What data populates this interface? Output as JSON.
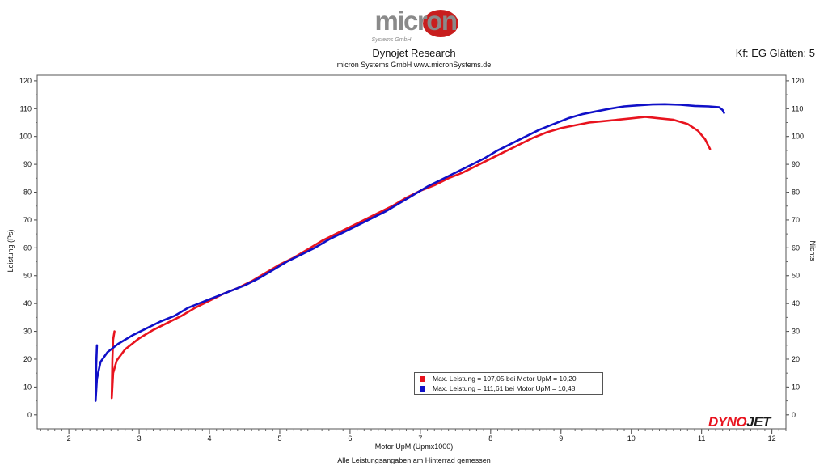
{
  "header": {
    "logo_text": "micron",
    "logo_subtext": "Systems GmbH",
    "title": "Dynojet Research",
    "subtitle": "micron Systems GmbH  www.micronSystems.de",
    "filter_label": "Kf: EG Glätten: 5"
  },
  "footer": {
    "note": "Alle Leistungsangaben am Hinterrad gemessen",
    "brand_logo": "DYNOJET"
  },
  "colors": {
    "run1": "#e8131e",
    "run2": "#1010c8",
    "logo_red": "#c81e1e",
    "logo_gray": "#8a8a8a"
  },
  "chart_data": {
    "type": "line",
    "xlabel": "Motor UpM (Upmx1000)",
    "ylabel": "Leistung (Ps)",
    "ylabel_right": "Nichts",
    "xlim": [
      1.55,
      12.2
    ],
    "ylim": [
      -5,
      122
    ],
    "xticks": [
      "2",
      "3",
      "4",
      "5",
      "6",
      "7",
      "8",
      "9",
      "10",
      "11",
      "12"
    ],
    "yticks": [
      "0",
      "10",
      "20",
      "30",
      "40",
      "50",
      "60",
      "70",
      "80",
      "90",
      "100",
      "110",
      "120"
    ],
    "grid": true,
    "legend_position": "bottom-center",
    "legend": [
      "Max. Leistung = 107,05 bei Motor UpM = 10,20",
      "Max. Leistung = 111,61 bei Motor UpM = 10,48"
    ],
    "series": [
      {
        "color": "#e8131e",
        "points": [
          [
            2.65,
            30
          ],
          [
            2.63,
            27
          ],
          [
            2.62,
            20
          ],
          [
            2.61,
            6
          ],
          [
            2.63,
            15
          ],
          [
            2.68,
            19.5
          ],
          [
            2.8,
            23.5
          ],
          [
            3.0,
            27.5
          ],
          [
            3.2,
            30.5
          ],
          [
            3.4,
            33
          ],
          [
            3.6,
            35.5
          ],
          [
            3.8,
            38.5
          ],
          [
            4.0,
            41
          ],
          [
            4.2,
            43.5
          ],
          [
            4.4,
            45.5
          ],
          [
            4.6,
            48
          ],
          [
            4.8,
            51
          ],
          [
            5.0,
            54
          ],
          [
            5.2,
            56.5
          ],
          [
            5.4,
            59.5
          ],
          [
            5.6,
            62.5
          ],
          [
            5.8,
            65
          ],
          [
            6.0,
            67.5
          ],
          [
            6.2,
            70
          ],
          [
            6.4,
            72.5
          ],
          [
            6.6,
            75
          ],
          [
            6.8,
            78
          ],
          [
            7.0,
            80.5
          ],
          [
            7.2,
            82.5
          ],
          [
            7.4,
            85
          ],
          [
            7.6,
            87
          ],
          [
            7.8,
            89.5
          ],
          [
            8.0,
            92
          ],
          [
            8.2,
            94.5
          ],
          [
            8.4,
            97
          ],
          [
            8.6,
            99.5
          ],
          [
            8.8,
            101.5
          ],
          [
            9.0,
            103
          ],
          [
            9.2,
            104
          ],
          [
            9.4,
            105
          ],
          [
            9.6,
            105.5
          ],
          [
            9.8,
            106
          ],
          [
            10.0,
            106.5
          ],
          [
            10.2,
            107.05
          ],
          [
            10.4,
            106.5
          ],
          [
            10.6,
            106
          ],
          [
            10.8,
            104.5
          ],
          [
            10.95,
            102
          ],
          [
            11.05,
            99
          ],
          [
            11.12,
            95.5
          ]
        ]
      },
      {
        "color": "#1010c8",
        "points": [
          [
            2.4,
            25
          ],
          [
            2.39,
            18
          ],
          [
            2.38,
            5
          ],
          [
            2.4,
            13
          ],
          [
            2.45,
            19
          ],
          [
            2.55,
            22.5
          ],
          [
            2.7,
            25.5
          ],
          [
            2.9,
            28.5
          ],
          [
            3.1,
            31
          ],
          [
            3.3,
            33.5
          ],
          [
            3.5,
            35.5
          ],
          [
            3.7,
            38.5
          ],
          [
            3.9,
            40.5
          ],
          [
            4.1,
            42.5
          ],
          [
            4.3,
            44.5
          ],
          [
            4.5,
            46.5
          ],
          [
            4.7,
            49
          ],
          [
            4.9,
            52
          ],
          [
            5.1,
            55
          ],
          [
            5.3,
            57.5
          ],
          [
            5.5,
            60
          ],
          [
            5.7,
            63
          ],
          [
            5.9,
            65.5
          ],
          [
            6.1,
            68
          ],
          [
            6.3,
            70.5
          ],
          [
            6.5,
            73
          ],
          [
            6.7,
            76
          ],
          [
            6.9,
            79
          ],
          [
            7.1,
            82
          ],
          [
            7.3,
            84.5
          ],
          [
            7.5,
            87
          ],
          [
            7.7,
            89.5
          ],
          [
            7.9,
            92
          ],
          [
            8.1,
            95
          ],
          [
            8.3,
            97.5
          ],
          [
            8.5,
            100
          ],
          [
            8.7,
            102.5
          ],
          [
            8.9,
            104.5
          ],
          [
            9.1,
            106.5
          ],
          [
            9.3,
            108
          ],
          [
            9.5,
            109
          ],
          [
            9.7,
            110
          ],
          [
            9.9,
            110.8
          ],
          [
            10.1,
            111.2
          ],
          [
            10.3,
            111.5
          ],
          [
            10.48,
            111.61
          ],
          [
            10.7,
            111.4
          ],
          [
            10.9,
            111
          ],
          [
            11.1,
            110.8
          ],
          [
            11.25,
            110.5
          ],
          [
            11.3,
            109.5
          ],
          [
            11.32,
            108.5
          ]
        ]
      }
    ]
  }
}
